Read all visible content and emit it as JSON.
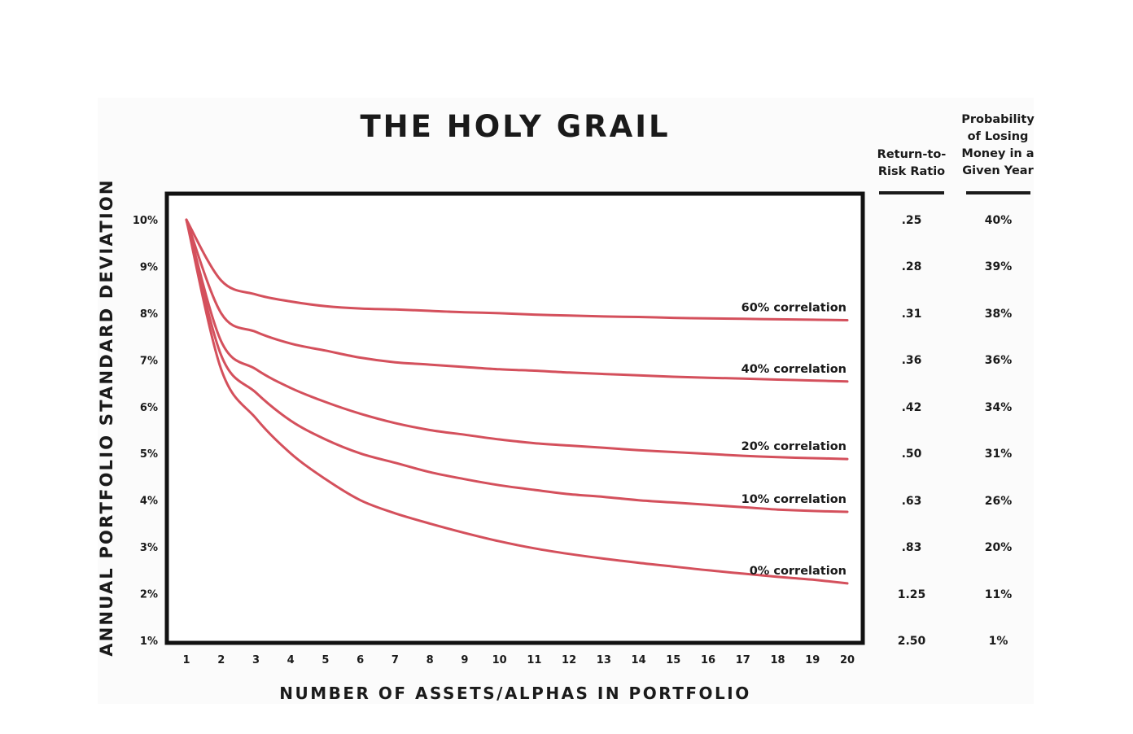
{
  "chart_data": {
    "type": "line",
    "title": "THE HOLY GRAIL",
    "xlabel": "NUMBER OF ASSETS/ALPHAS IN PORTFOLIO",
    "ylabel": "ANNUAL PORTFOLIO STANDARD DEVIATION",
    "x": [
      1,
      2,
      3,
      4,
      5,
      6,
      7,
      8,
      9,
      10,
      11,
      12,
      13,
      14,
      15,
      16,
      17,
      18,
      19,
      20
    ],
    "xlim": [
      1,
      20
    ],
    "ylim": [
      1,
      10
    ],
    "y_ticks": [
      "1%",
      "2%",
      "3%",
      "4%",
      "5%",
      "6%",
      "7%",
      "8%",
      "9%",
      "10%"
    ],
    "x_ticks": [
      "1",
      "2",
      "3",
      "4",
      "5",
      "6",
      "7",
      "8",
      "9",
      "10",
      "11",
      "12",
      "13",
      "14",
      "15",
      "16",
      "17",
      "18",
      "19",
      "20"
    ],
    "grid": false,
    "line_color": "#d4505c",
    "series": [
      {
        "name": "60% correlation",
        "values": [
          10.0,
          8.7,
          8.4,
          8.25,
          8.15,
          8.1,
          8.08,
          8.05,
          8.02,
          8.0,
          7.97,
          7.95,
          7.93,
          7.92,
          7.9,
          7.89,
          7.88,
          7.87,
          7.86,
          7.85
        ]
      },
      {
        "name": "40% correlation",
        "values": [
          10.0,
          8.0,
          7.6,
          7.35,
          7.2,
          7.05,
          6.95,
          6.9,
          6.85,
          6.8,
          6.77,
          6.73,
          6.7,
          6.67,
          6.64,
          6.62,
          6.6,
          6.58,
          6.56,
          6.54
        ]
      },
      {
        "name": "20% correlation",
        "values": [
          10.0,
          7.4,
          6.8,
          6.4,
          6.1,
          5.85,
          5.65,
          5.5,
          5.4,
          5.3,
          5.22,
          5.17,
          5.12,
          5.07,
          5.03,
          4.99,
          4.95,
          4.92,
          4.9,
          4.88
        ]
      },
      {
        "name": "10% correlation",
        "values": [
          10.0,
          7.1,
          6.3,
          5.7,
          5.3,
          5.0,
          4.8,
          4.6,
          4.45,
          4.32,
          4.22,
          4.13,
          4.07,
          4.0,
          3.95,
          3.9,
          3.85,
          3.8,
          3.77,
          3.75
        ]
      },
      {
        "name": "0% correlation",
        "values": [
          10.0,
          6.8,
          5.75,
          5.0,
          4.45,
          4.0,
          3.72,
          3.5,
          3.3,
          3.12,
          2.97,
          2.85,
          2.75,
          2.66,
          2.58,
          2.5,
          2.43,
          2.36,
          2.3,
          2.22
        ]
      }
    ],
    "table": {
      "return_to_risk_header": "Return-to-\nRisk Ratio",
      "probability_header": "Probability\nof Losing\nMoney in a\nGiven Year",
      "rows": [
        {
          "level": 10,
          "ratio": ".25",
          "prob": "40%"
        },
        {
          "level": 9,
          "ratio": ".28",
          "prob": "39%"
        },
        {
          "level": 8,
          "ratio": ".31",
          "prob": "38%"
        },
        {
          "level": 7,
          "ratio": ".36",
          "prob": "36%"
        },
        {
          "level": 6,
          "ratio": ".42",
          "prob": "34%"
        },
        {
          "level": 5,
          "ratio": ".50",
          "prob": "31%"
        },
        {
          "level": 4,
          "ratio": ".63",
          "prob": "26%"
        },
        {
          "level": 3,
          "ratio": ".83",
          "prob": "20%"
        },
        {
          "level": 2,
          "ratio": "1.25",
          "prob": "11%"
        },
        {
          "level": 1,
          "ratio": "2.50",
          "prob": "1%"
        }
      ]
    }
  }
}
